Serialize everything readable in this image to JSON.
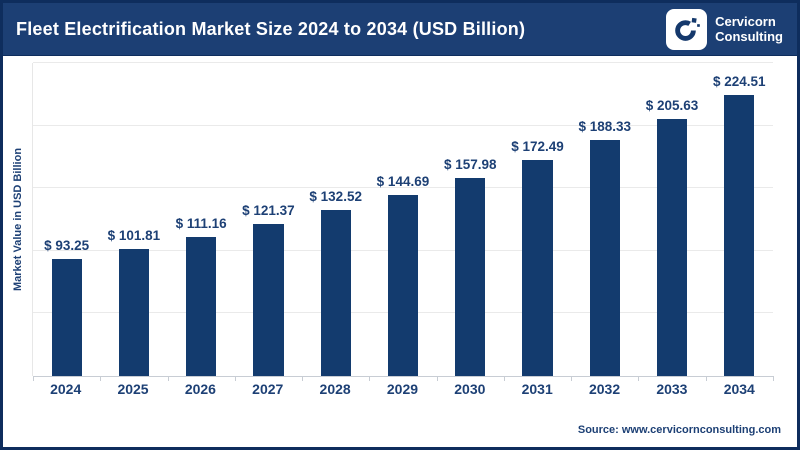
{
  "header": {
    "title": "Fleet Electrification Market Size 2024 to 2034 (USD Billion)",
    "brand": {
      "line1": "Cervicorn",
      "line2": "Consulting"
    }
  },
  "chart_data": {
    "type": "bar",
    "title": "Fleet Electrification Market Size 2024 to 2034 (USD Billion)",
    "categories": [
      "2024",
      "2025",
      "2026",
      "2027",
      "2028",
      "2029",
      "2030",
      "2031",
      "2032",
      "2033",
      "2034"
    ],
    "values": [
      93.25,
      101.81,
      111.16,
      121.37,
      132.52,
      144.69,
      157.98,
      172.49,
      188.33,
      205.63,
      224.51
    ],
    "value_labels": [
      "$ 93.25",
      "$ 101.81",
      "$ 111.16",
      "$ 121.37",
      "$ 132.52",
      "$ 144.69",
      "$ 157.98",
      "$ 172.49",
      "$ 188.33",
      "$ 205.63",
      "$ 224.51"
    ],
    "xlabel": "",
    "ylabel": "Market Value in USD Billion",
    "ylim": [
      0,
      250
    ],
    "grid_step": 50,
    "grid": true,
    "legend": false,
    "bar_color": "#133b6e"
  },
  "footer": {
    "source": "Source: www.cervicornconsulting.com"
  },
  "colors": {
    "border": "#0e2d5d",
    "header_bg": "#1c3f74",
    "bar": "#133b6e",
    "text_navy": "#1d4075",
    "grid": "#eaeaea",
    "axis": "#c8cdd4",
    "white": "#ffffff"
  }
}
